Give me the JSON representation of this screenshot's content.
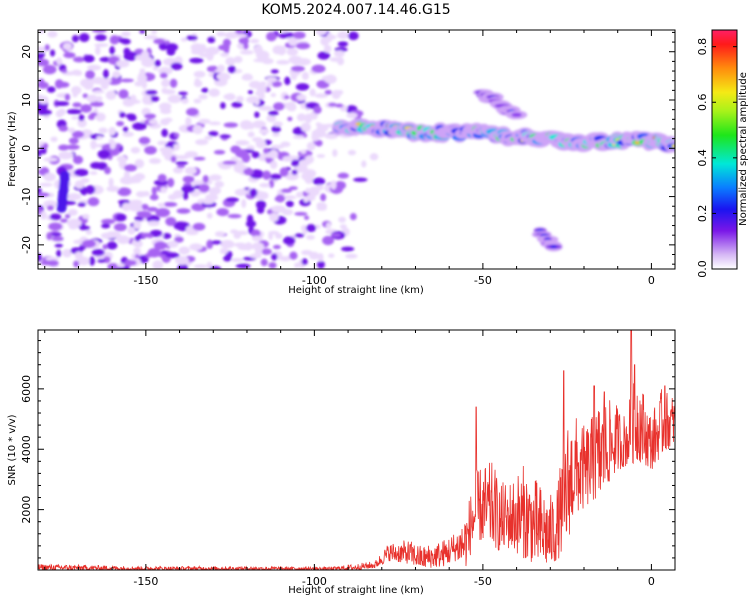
{
  "title": "KOM5.2024.007.14.46.G15",
  "chart_data": [
    {
      "type": "heatmap",
      "xlabel": "Height of straight line (km)",
      "ylabel": "Frequency (Hz)",
      "xlim": [
        -182,
        7
      ],
      "ylim": [
        -25,
        24.5
      ],
      "xticks": [
        -150,
        -100,
        -50,
        0
      ],
      "xtick_labels": [
        "-150",
        "-100",
        "-50",
        "0"
      ],
      "yticks": [
        -20,
        -10,
        0,
        10,
        20
      ],
      "ytick_labels": [
        "-20",
        "-10",
        "0",
        "10",
        "20"
      ],
      "colorbar": {
        "label": "Normalized spectral amplitude",
        "range": [
          0.0,
          0.86
        ],
        "ticks": [
          0.0,
          0.2,
          0.4,
          0.6,
          0.8
        ],
        "tick_labels": [
          "0.0",
          "0.2",
          "0.4",
          "0.6",
          "0.8"
        ],
        "colormap": "white-purple-blue-cyan-green-yellow-red"
      },
      "features": [
        {
          "name": "noise speckle",
          "x_range": [
            -182,
            -88
          ],
          "y_range": [
            -25,
            24.5
          ],
          "amplitude": 0.1
        },
        {
          "name": "main ridge",
          "points": [
            [
              -93,
              4.6
            ],
            [
              -80,
              4.2
            ],
            [
              -70,
              3.4
            ],
            [
              -60,
              3.2
            ],
            [
              -50,
              3.0
            ],
            [
              -40,
              2.4
            ],
            [
              -30,
              2.0
            ],
            [
              -20,
              1.3
            ],
            [
              -10,
              1.4
            ],
            [
              0,
              1.6
            ],
            [
              7,
              0.6
            ]
          ],
          "amplitude": 0.7
        },
        {
          "name": "upper branch",
          "points": [
            [
              -50,
              11.5
            ],
            [
              -48,
              10.5
            ],
            [
              -44,
              8.5
            ],
            [
              -40,
              6.5
            ]
          ],
          "amplitude": 0.25
        },
        {
          "name": "lower streak",
          "points": [
            [
              -33,
              -17.5
            ],
            [
              -29,
              -20.5
            ]
          ],
          "amplitude": 0.25
        },
        {
          "name": "left streak",
          "points": [
            [
              -174,
              -5.5
            ],
            [
              -175,
              -12.5
            ]
          ],
          "amplitude": 0.25
        }
      ]
    },
    {
      "type": "line",
      "xlabel": "Height of straight line (km)",
      "ylabel": "SNR (10 * v/v)",
      "xlim": [
        -182,
        7
      ],
      "ylim": [
        0,
        7950
      ],
      "xticks": [
        -150,
        -100,
        -50,
        0
      ],
      "xtick_labels": [
        "-150",
        "-100",
        "-50",
        "0"
      ],
      "yticks": [
        2000,
        4000,
        6000
      ],
      "ytick_labels": [
        "2000",
        "4000",
        "6000"
      ],
      "series": [
        {
          "color": "#e8312c",
          "envelope": {
            "x": [
              -182,
              -150,
              -120,
              -95,
              -88,
              -82,
              -78,
              -72,
              -68,
              -62,
              -58,
              -55,
              -52,
              -50,
              -47,
              -45,
              -42,
              -38,
              -34,
              -30,
              -28,
              -25,
              -23,
              -20,
              -17,
              -15,
              -12,
              -10,
              -8,
              -6,
              -4,
              -2,
              0,
              3,
              7
            ],
            "low": [
              0,
              0,
              0,
              0,
              0,
              60,
              300,
              200,
              50,
              100,
              300,
              100,
              1000,
              900,
              800,
              600,
              700,
              400,
              150,
              100,
              300,
              800,
              1800,
              2000,
              2300,
              2300,
              3000,
              3300,
              3400,
              3500,
              3600,
              3500,
              3300,
              3800,
              4200
            ],
            "high": [
              200,
              120,
              120,
              100,
              200,
              300,
              900,
              1000,
              800,
              1000,
              1300,
              2000,
              3300,
              3500,
              3600,
              2900,
              3000,
              3500,
              3000,
              2500,
              2800,
              5000,
              5200,
              4800,
              5200,
              5800,
              5600,
              5500,
              5200,
              5900,
              6800,
              5800,
              5200,
              6000,
              5800
            ]
          },
          "peaks": [
            [
              -52,
              5400
            ],
            [
              -26,
              6600
            ],
            [
              -17,
              6100
            ],
            [
              -14,
              5900
            ],
            [
              -6,
              7950
            ],
            [
              -5,
              6800
            ],
            [
              4,
              6100
            ]
          ]
        }
      ]
    }
  ]
}
